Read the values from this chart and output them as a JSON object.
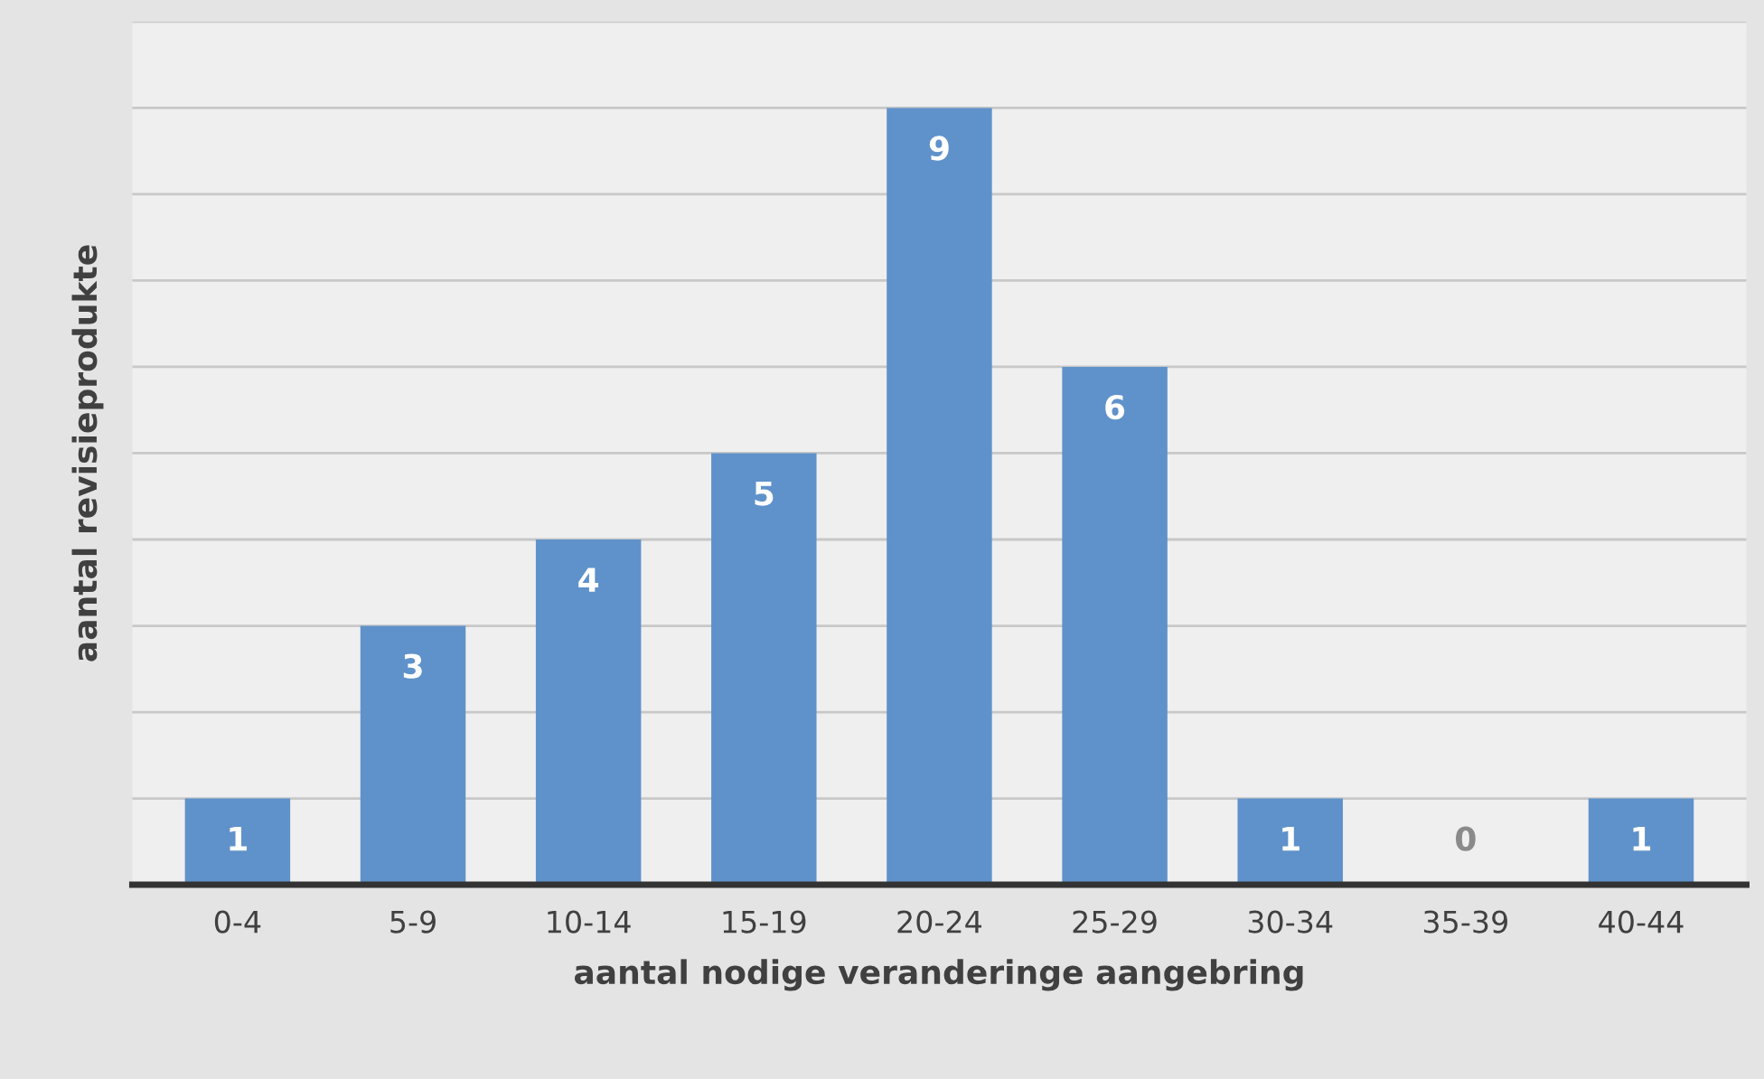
{
  "chart_data": {
    "type": "bar",
    "categories": [
      "0-4",
      "5-9",
      "10-14",
      "15-19",
      "20-24",
      "25-29",
      "30-34",
      "35-39",
      "40-44"
    ],
    "values": [
      1,
      3,
      4,
      5,
      9,
      6,
      1,
      0,
      1
    ],
    "color": "#5f92ca",
    "xlabel": "aantal nodige veranderinge aangebring",
    "ylabel": "aantal revisieprodukte",
    "ylim": [
      0,
      10
    ],
    "yticks": [
      {
        "value": 0,
        "label": null
      },
      {
        "value": 1,
        "label": null
      },
      {
        "value": 2,
        "label": null
      },
      {
        "value": 3,
        "label": null
      },
      {
        "value": 4,
        "label": null
      },
      {
        "value": 5,
        "label": null
      },
      {
        "value": 6,
        "label": null
      },
      {
        "value": 7,
        "label": null
      },
      {
        "value": 8,
        "label": null
      },
      {
        "value": 9,
        "label": null
      },
      {
        "value": 10,
        "label": null
      }
    ],
    "tick_labels": "x",
    "grid": "y",
    "data_labels": true
  }
}
